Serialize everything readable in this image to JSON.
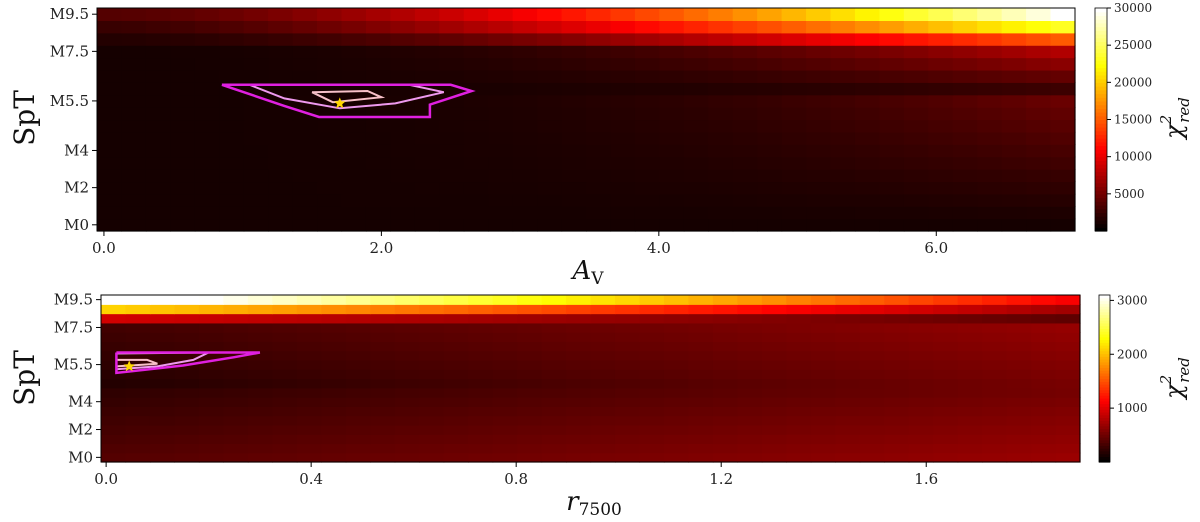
{
  "chart_data": [
    {
      "type": "heatmap",
      "ylabel": "SpT",
      "xlabel_main": "A",
      "xlabel_sub": "V",
      "x_ticks": [
        0.0,
        2.0,
        4.0,
        6.0
      ],
      "x_tick_labels": [
        "0.0",
        "2.0",
        "4.0",
        "6.0"
      ],
      "xlim": [
        -0.05,
        7.0
      ],
      "y_tick_labels": [
        "M0",
        "M2",
        "M4",
        "M5.5",
        "M7.5",
        "M9.5"
      ],
      "y_rows": 18,
      "x_cols": 40,
      "colorbar": {
        "label_main": "χ",
        "label_sup": "2",
        "label_sub": "red",
        "min": 0,
        "max": 30000,
        "ticks": [
          5000,
          10000,
          15000,
          20000,
          25000,
          30000
        ],
        "tick_labels": [
          "5000",
          "10000",
          "15000",
          "20000",
          "25000",
          "30000"
        ],
        "colormap": "hot"
      },
      "best_fit": {
        "x": 1.7,
        "spt_row": 10.3,
        "marker_color": "#ffd700"
      },
      "contours": [
        {
          "level": "inner",
          "color": "#f7c0c8",
          "points": [
            [
              1.5,
              11.2
            ],
            [
              1.9,
              11.3
            ],
            [
              2.0,
              10.8
            ],
            [
              1.65,
              10.4
            ],
            [
              1.5,
              11.2
            ]
          ]
        },
        {
          "level": "middle",
          "color": "#ee99ee",
          "points": [
            [
              1.05,
              11.8
            ],
            [
              2.2,
              11.8
            ],
            [
              2.45,
              11.2
            ],
            [
              2.1,
              10.3
            ],
            [
              1.7,
              9.9
            ],
            [
              1.3,
              10.7
            ],
            [
              1.05,
              11.8
            ]
          ]
        },
        {
          "level": "outer",
          "color": "#e020e0",
          "points": [
            [
              0.85,
              11.8
            ],
            [
              2.5,
              11.8
            ],
            [
              2.65,
              11.3
            ],
            [
              2.35,
              10.2
            ],
            [
              2.35,
              9.2
            ],
            [
              1.55,
              9.2
            ],
            [
              1.3,
              10.1
            ],
            [
              0.85,
              11.8
            ]
          ]
        }
      ],
      "peak_value": 30000
    },
    {
      "type": "heatmap",
      "ylabel": "SpT",
      "xlabel_main": "r",
      "xlabel_sub": "7500",
      "x_ticks": [
        0.0,
        0.4,
        0.8,
        1.2,
        1.6
      ],
      "x_tick_labels": [
        "0.0",
        "0.4",
        "0.8",
        "1.2",
        "1.6"
      ],
      "xlim": [
        -0.01,
        1.9
      ],
      "y_tick_labels": [
        "M0",
        "M2",
        "M4",
        "M5.5",
        "M7.5",
        "M9.5"
      ],
      "y_rows": 18,
      "x_cols": 40,
      "colorbar": {
        "label_main": "χ",
        "label_sup": "2",
        "label_sub": "red",
        "min": 0,
        "max": 3100,
        "ticks": [
          1000,
          2000,
          3000
        ],
        "tick_labels": [
          "1000",
          "2000",
          "3000"
        ],
        "colormap": "hot"
      },
      "best_fit": {
        "x": 0.045,
        "spt_row": 10.3,
        "marker_color": "#ffd700"
      },
      "contours": [
        {
          "level": "inner",
          "color": "#f7c0c8",
          "points": [
            [
              0.02,
              11.0
            ],
            [
              0.08,
              11.0
            ],
            [
              0.1,
              10.6
            ],
            [
              0.02,
              10.3
            ]
          ]
        },
        {
          "level": "middle",
          "color": "#ee99ee",
          "points": [
            [
              0.02,
              11.7
            ],
            [
              0.2,
              11.8
            ],
            [
              0.17,
              11.0
            ],
            [
              0.1,
              10.3
            ],
            [
              0.02,
              10.0
            ]
          ]
        },
        {
          "level": "outer",
          "color": "#e020e0",
          "points": [
            [
              0.02,
              11.8
            ],
            [
              0.3,
              11.8
            ],
            [
              0.25,
              11.3
            ],
            [
              0.15,
              10.4
            ],
            [
              0.02,
              9.6
            ],
            [
              0.02,
              11.8
            ]
          ]
        }
      ],
      "peak_value": 3100
    }
  ]
}
